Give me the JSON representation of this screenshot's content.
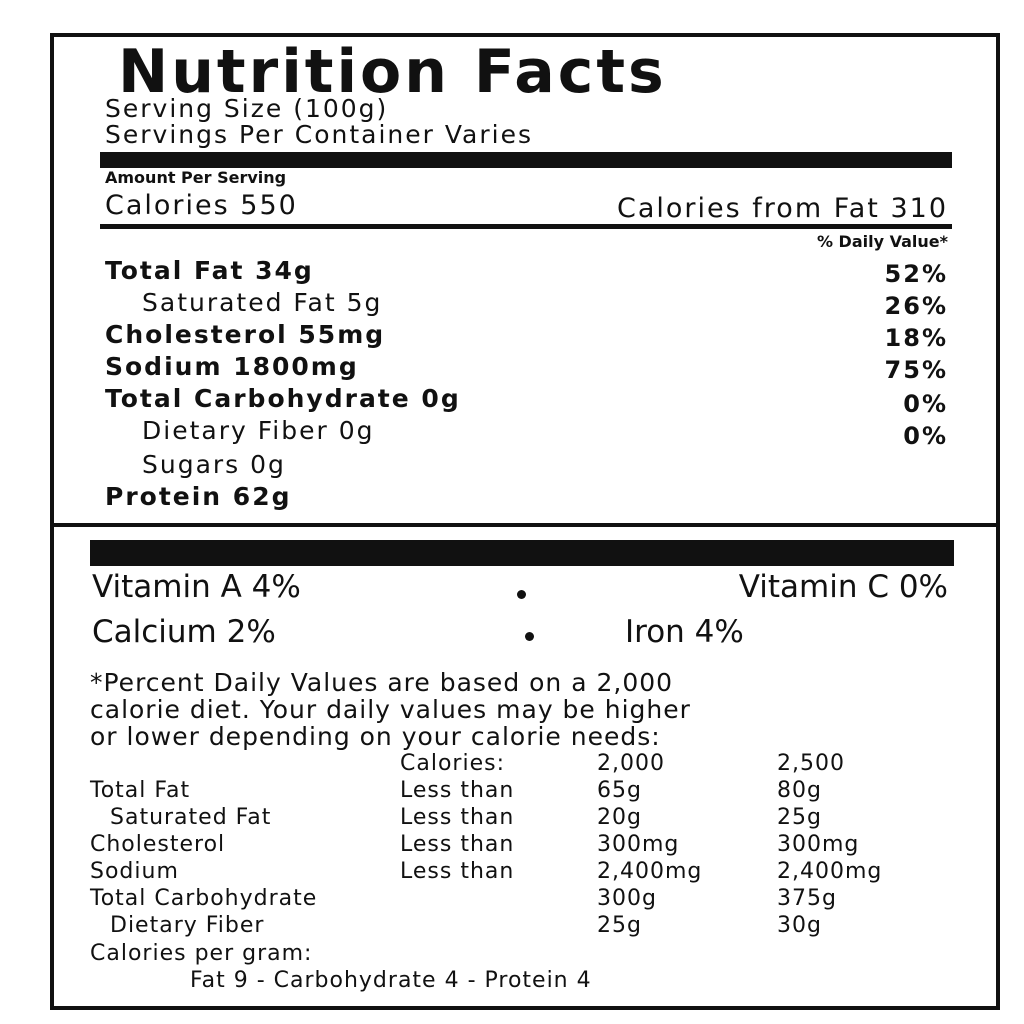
{
  "header": {
    "title": "Nutrition Facts",
    "serving_size": "Serving Size (100g)",
    "servings": "Servings Per Container Varies"
  },
  "amount_label": "Amount Per Serving",
  "calories": "Calories 550",
  "calories_from_fat": "Calories from Fat 310",
  "daily_value_label": "% Daily Value*",
  "nutrients": [
    {
      "label": "Total Fat 34g",
      "dv": "52%"
    },
    {
      "label": "Saturated Fat 5g",
      "dv": "26%"
    },
    {
      "label": "Cholesterol 55mg",
      "dv": "18%"
    },
    {
      "label": "Sodium 1800mg",
      "dv": "75%"
    },
    {
      "label": "Total Carbohydrate 0g",
      "dv": "0%"
    },
    {
      "label": "Dietary Fiber 0g",
      "dv": "0%"
    },
    {
      "label": "Sugars 0g"
    },
    {
      "label": "Protein 62g"
    }
  ],
  "vitamins": [
    [
      "Vitamin A 4%",
      "Vitamin C 0%"
    ],
    [
      "Calcium 2%",
      "Iron 4%"
    ]
  ],
  "footnote": [
    "*Percent Daily Values are based on a 2,000",
    "calorie diet. Your daily values may be higher",
    "or lower depending on your calorie needs:"
  ],
  "reference_table": {
    "header": [
      "Calories:",
      "2,000",
      "2,500"
    ],
    "rows": [
      [
        "Total Fat",
        "Less than",
        "65g",
        "80g"
      ],
      [
        "Saturated Fat",
        "Less than",
        "20g",
        "25g"
      ],
      [
        "Cholesterol",
        "Less than",
        "300mg",
        "300mg"
      ],
      [
        "Sodium",
        "Less than",
        "2,400mg",
        "2,400mg"
      ],
      [
        "Total Carbohydrate",
        "",
        "300g",
        "375g"
      ],
      [
        "Dietary Fiber",
        "",
        "25g",
        "30g"
      ]
    ]
  },
  "calories_per_gram": {
    "label": "Calories per gram:",
    "values": "Fat 9 - Carbohydrate 4 - Protein 4"
  }
}
